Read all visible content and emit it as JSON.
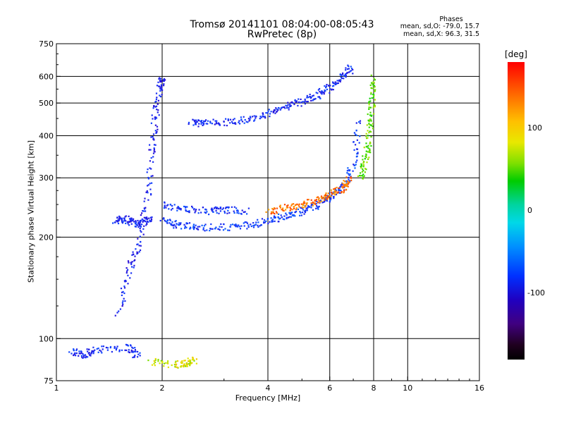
{
  "header": {
    "title_line1": "Tromsø 20141101 08:04:00-08:05:43",
    "title_line2": "RwPretec (8p)"
  },
  "annotation": {
    "heading": "Phases",
    "line_o": "mean, sd,O: -79.0, 15.7",
    "line_x": "mean, sd,X:  96.3, 31.5"
  },
  "colorbar": {
    "unit": "[deg]",
    "ticks": [
      {
        "value": 100,
        "label": "100"
      },
      {
        "value": 0,
        "label": "0"
      },
      {
        "value": -100,
        "label": "-100"
      }
    ],
    "range": [
      -180,
      180
    ],
    "colors": [
      "#ff0000",
      "#ffc000",
      "#e8e800",
      "#00cc00",
      "#00d8e8",
      "#0030ff",
      "#400080",
      "#000000"
    ]
  },
  "chart_data": {
    "type": "scatter",
    "title": "Tromsø 20141101 08:04:00-08:05:43",
    "subtitle": "RwPretec (8p)",
    "xlabel": "Frequency [MHz]",
    "ylabel": "Stationary phase Virtual Height [km]",
    "xscale": "log",
    "yscale": "log",
    "xlim": [
      1,
      16
    ],
    "ylim": [
      75,
      750
    ],
    "xticks": [
      1,
      2,
      4,
      6,
      8,
      10,
      16
    ],
    "xtick_labels": [
      "1",
      "2",
      "4",
      "6",
      "8",
      "10",
      "16"
    ],
    "yticks": [
      75,
      100,
      200,
      300,
      400,
      500,
      600,
      750
    ],
    "ytick_labels": [
      "75",
      "100",
      "200",
      "300",
      "400",
      "500",
      "600",
      "750"
    ],
    "grid_x": [
      2,
      4,
      6,
      8,
      10
    ],
    "grid_y": [
      100,
      200,
      300,
      400,
      500,
      600
    ],
    "color_scale": "phase [deg]",
    "traces": [
      {
        "x": [
          1.5,
          1.6,
          1.7,
          1.8,
          1.85,
          1.9,
          1.95,
          2.0
        ],
        "y": [
          120,
          160,
          190,
          250,
          350,
          450,
          550,
          600
        ],
        "phase": -105
      },
      {
        "x": [
          1.45,
          1.55,
          1.65,
          1.75,
          1.85
        ],
        "y": [
          225,
          228,
          222,
          220,
          230
        ],
        "phase": -100
      },
      {
        "x": [
          2.0,
          2.2,
          2.5,
          3.0,
          3.5,
          4.0,
          4.5,
          5.0,
          5.5,
          6.0,
          6.5,
          7.0,
          7.2
        ],
        "y": [
          225,
          218,
          215,
          215,
          218,
          225,
          232,
          240,
          250,
          265,
          285,
          330,
          450
        ],
        "phase": -90
      },
      {
        "x": [
          2.0,
          2.3,
          2.7,
          3.0,
          3.5
        ],
        "y": [
          250,
          245,
          240,
          242,
          240
        ],
        "phase": -95
      },
      {
        "x": [
          2.4,
          2.6,
          3.0,
          3.5,
          4.0,
          4.5,
          5.0,
          5.5,
          6.0,
          6.5,
          6.9
        ],
        "y": [
          440,
          437,
          440,
          450,
          470,
          490,
          510,
          530,
          560,
          600,
          640
        ],
        "phase": -100
      },
      {
        "x": [
          4.0,
          4.5,
          5.0,
          5.5,
          6.0,
          6.5,
          6.8
        ],
        "y": [
          240,
          245,
          250,
          258,
          268,
          280,
          300
        ],
        "phase": 140
      },
      {
        "x": [
          7.3,
          7.5,
          7.7,
          7.8,
          7.9,
          8.0
        ],
        "y": [
          300,
          340,
          380,
          450,
          520,
          600
        ],
        "phase": 70
      },
      {
        "x": [
          1.1,
          1.2,
          1.3,
          1.6,
          1.7
        ],
        "y": [
          92,
          90,
          93,
          95,
          88
        ],
        "phase": -100
      },
      {
        "x": [
          1.85,
          2.2,
          2.35,
          2.45
        ],
        "y": [
          86,
          84,
          85,
          87
        ],
        "phase": 95
      }
    ]
  }
}
